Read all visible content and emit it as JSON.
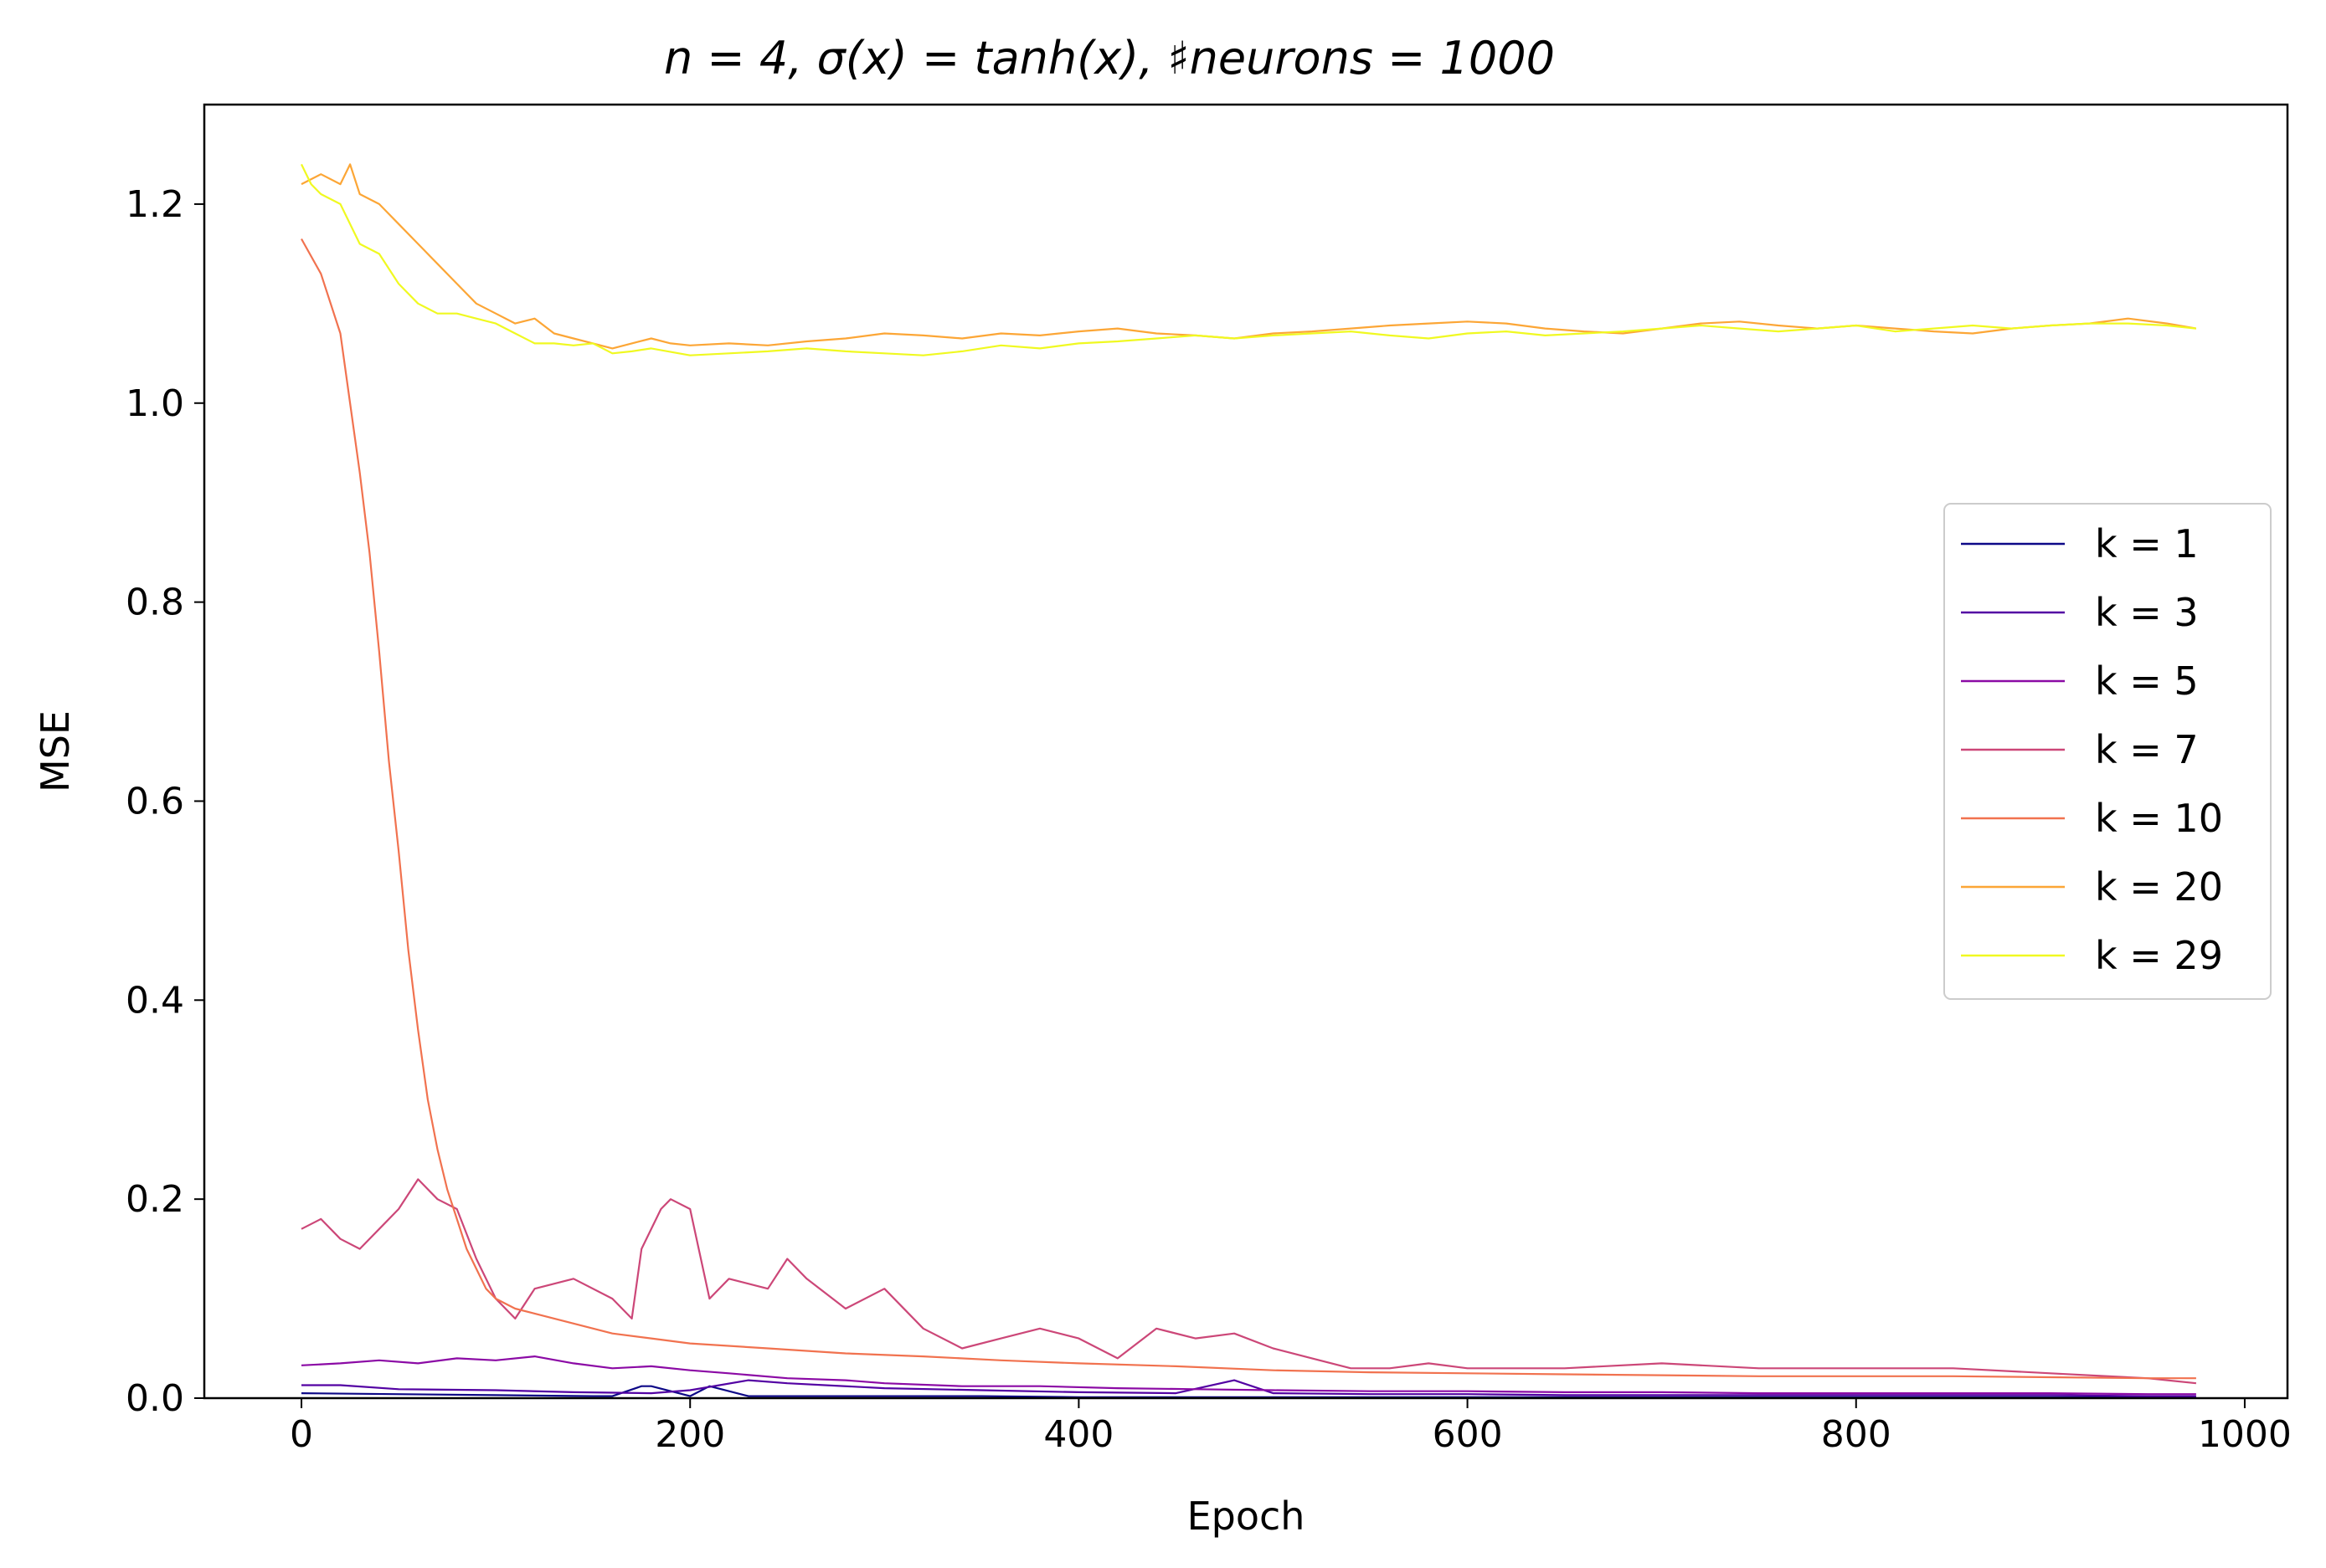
{
  "chart_data": {
    "type": "line",
    "title": "n = 4, σ(x) = tanh(x), ♯neurons = 1000",
    "xlabel": "Epoch",
    "ylabel": "MSE",
    "xlim": [
      -50,
      1022
    ],
    "ylim": [
      0,
      1.3
    ],
    "xticks": [
      0,
      200,
      400,
      600,
      800,
      1000
    ],
    "yticks": [
      0.0,
      0.2,
      0.4,
      0.6,
      0.8,
      1.0,
      1.2
    ],
    "xtick_labels": [
      "0",
      "200",
      "400",
      "600",
      "800",
      "1000"
    ],
    "ytick_labels": [
      "0.0",
      "0.2",
      "0.4",
      "0.6",
      "0.8",
      "1.0",
      "1.2"
    ],
    "grid": false,
    "legend": "center-right",
    "series": [
      {
        "name": "k = 1",
        "color": "#0d0887",
        "x": [
          0,
          100,
          150,
          160,
          175,
          180,
          200,
          210,
          230,
          280,
          300,
          350,
          400,
          450,
          500,
          550,
          600,
          650,
          700,
          750,
          800,
          850,
          900,
          950,
          975
        ],
        "y": [
          0.005,
          0.003,
          0.002,
          0.002,
          0.012,
          0.012,
          0.002,
          0.012,
          0.002,
          0.002,
          0.002,
          0.002,
          0.001,
          0.001,
          0.001,
          0.001,
          0.001,
          0.001,
          0.001,
          0.001,
          0.001,
          0.001,
          0.001,
          0.001,
          0.001
        ]
      },
      {
        "name": "k = 3",
        "color": "#5302a3",
        "x": [
          0,
          20,
          50,
          100,
          140,
          180,
          200,
          230,
          250,
          300,
          350,
          400,
          450,
          480,
          500,
          550,
          600,
          650,
          700,
          750,
          800,
          850,
          900,
          950,
          975
        ],
        "y": [
          0.013,
          0.013,
          0.009,
          0.008,
          0.006,
          0.005,
          0.008,
          0.018,
          0.015,
          0.01,
          0.008,
          0.006,
          0.005,
          0.018,
          0.005,
          0.004,
          0.004,
          0.003,
          0.003,
          0.003,
          0.003,
          0.003,
          0.003,
          0.002,
          0.002
        ]
      },
      {
        "name": "k = 5",
        "color": "#8b0aa5",
        "x": [
          0,
          20,
          40,
          60,
          80,
          100,
          120,
          140,
          160,
          180,
          200,
          220,
          250,
          280,
          300,
          340,
          380,
          420,
          460,
          500,
          550,
          600,
          650,
          700,
          750,
          800,
          850,
          900,
          950,
          975
        ],
        "y": [
          0.033,
          0.035,
          0.038,
          0.035,
          0.04,
          0.038,
          0.042,
          0.035,
          0.03,
          0.032,
          0.028,
          0.025,
          0.02,
          0.018,
          0.015,
          0.012,
          0.012,
          0.01,
          0.009,
          0.008,
          0.007,
          0.007,
          0.006,
          0.006,
          0.005,
          0.005,
          0.005,
          0.005,
          0.004,
          0.004
        ]
      },
      {
        "name": "k = 7",
        "color": "#cc4778",
        "x": [
          0,
          10,
          20,
          30,
          40,
          50,
          60,
          70,
          80,
          90,
          100,
          110,
          120,
          140,
          160,
          170,
          175,
          185,
          190,
          200,
          210,
          220,
          240,
          250,
          260,
          280,
          300,
          320,
          340,
          360,
          380,
          400,
          420,
          440,
          460,
          480,
          500,
          520,
          540,
          560,
          580,
          600,
          650,
          700,
          750,
          800,
          850,
          900,
          950,
          975
        ],
        "y": [
          0.17,
          0.18,
          0.16,
          0.15,
          0.17,
          0.19,
          0.22,
          0.2,
          0.19,
          0.14,
          0.1,
          0.08,
          0.11,
          0.12,
          0.1,
          0.08,
          0.15,
          0.19,
          0.2,
          0.19,
          0.1,
          0.12,
          0.11,
          0.14,
          0.12,
          0.09,
          0.11,
          0.07,
          0.05,
          0.06,
          0.07,
          0.06,
          0.04,
          0.07,
          0.06,
          0.065,
          0.05,
          0.04,
          0.03,
          0.03,
          0.035,
          0.03,
          0.03,
          0.035,
          0.03,
          0.03,
          0.03,
          0.025,
          0.02,
          0.015
        ]
      },
      {
        "name": "k = 10",
        "color": "#f1724f",
        "x": [
          0,
          10,
          15,
          20,
          25,
          30,
          35,
          40,
          45,
          50,
          55,
          60,
          65,
          70,
          75,
          80,
          85,
          90,
          95,
          100,
          110,
          120,
          140,
          160,
          180,
          200,
          240,
          280,
          320,
          360,
          400,
          450,
          500,
          550,
          600,
          650,
          700,
          750,
          800,
          850,
          900,
          950,
          975
        ],
        "y": [
          1.165,
          1.13,
          1.1,
          1.07,
          1.0,
          0.93,
          0.85,
          0.75,
          0.64,
          0.55,
          0.45,
          0.37,
          0.3,
          0.25,
          0.21,
          0.18,
          0.15,
          0.13,
          0.11,
          0.1,
          0.09,
          0.085,
          0.075,
          0.065,
          0.06,
          0.055,
          0.05,
          0.045,
          0.042,
          0.038,
          0.035,
          0.032,
          0.028,
          0.026,
          0.025,
          0.024,
          0.023,
          0.022,
          0.022,
          0.022,
          0.021,
          0.02,
          0.02
        ]
      },
      {
        "name": "k = 20",
        "color": "#fca636",
        "x": [
          0,
          10,
          20,
          25,
          30,
          40,
          50,
          60,
          70,
          80,
          90,
          100,
          110,
          120,
          130,
          140,
          150,
          160,
          170,
          180,
          190,
          200,
          220,
          240,
          260,
          280,
          300,
          320,
          340,
          360,
          380,
          400,
          420,
          440,
          460,
          480,
          500,
          520,
          540,
          560,
          580,
          600,
          620,
          640,
          660,
          680,
          700,
          720,
          740,
          760,
          780,
          800,
          820,
          840,
          860,
          880,
          900,
          920,
          940,
          960,
          975
        ],
        "y": [
          1.22,
          1.23,
          1.22,
          1.24,
          1.21,
          1.2,
          1.18,
          1.16,
          1.14,
          1.12,
          1.1,
          1.09,
          1.08,
          1.085,
          1.07,
          1.065,
          1.06,
          1.055,
          1.06,
          1.065,
          1.06,
          1.058,
          1.06,
          1.058,
          1.062,
          1.065,
          1.07,
          1.068,
          1.065,
          1.07,
          1.068,
          1.072,
          1.075,
          1.07,
          1.068,
          1.065,
          1.07,
          1.072,
          1.075,
          1.078,
          1.08,
          1.082,
          1.08,
          1.075,
          1.072,
          1.07,
          1.075,
          1.08,
          1.082,
          1.078,
          1.075,
          1.078,
          1.075,
          1.072,
          1.07,
          1.075,
          1.078,
          1.08,
          1.085,
          1.08,
          1.075
        ]
      },
      {
        "name": "k = 29",
        "color": "#f0f921",
        "x": [
          0,
          5,
          10,
          20,
          30,
          40,
          50,
          60,
          70,
          80,
          90,
          100,
          110,
          120,
          130,
          140,
          150,
          160,
          170,
          180,
          200,
          220,
          240,
          260,
          280,
          300,
          320,
          340,
          360,
          380,
          400,
          420,
          440,
          460,
          480,
          500,
          520,
          540,
          560,
          580,
          600,
          620,
          640,
          660,
          680,
          700,
          720,
          740,
          760,
          780,
          800,
          820,
          840,
          860,
          880,
          900,
          920,
          940,
          960,
          975
        ],
        "y": [
          1.24,
          1.22,
          1.21,
          1.2,
          1.16,
          1.15,
          1.12,
          1.1,
          1.09,
          1.09,
          1.085,
          1.08,
          1.07,
          1.06,
          1.06,
          1.058,
          1.06,
          1.05,
          1.052,
          1.055,
          1.048,
          1.05,
          1.052,
          1.055,
          1.052,
          1.05,
          1.048,
          1.052,
          1.058,
          1.055,
          1.06,
          1.062,
          1.065,
          1.068,
          1.065,
          1.068,
          1.07,
          1.072,
          1.068,
          1.065,
          1.07,
          1.072,
          1.068,
          1.07,
          1.072,
          1.075,
          1.078,
          1.075,
          1.072,
          1.075,
          1.078,
          1.072,
          1.075,
          1.078,
          1.075,
          1.078,
          1.08,
          1.08,
          1.078,
          1.075
        ]
      }
    ]
  }
}
